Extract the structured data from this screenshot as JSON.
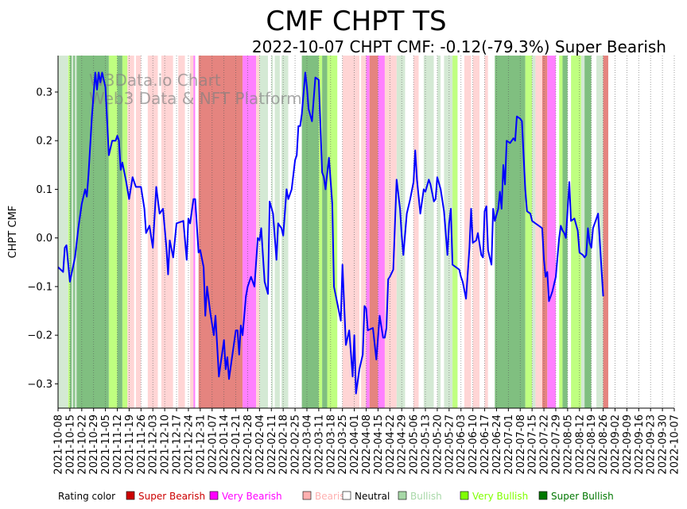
{
  "chart_data": {
    "type": "line",
    "title": "CMF CHPT TS",
    "subtitle": "2022-10-07 CHPT CMF: -0.12(-79.3%) Super Bearish",
    "ylabel": "CHPT CMF",
    "xlabel": "",
    "ylim": [
      -0.35,
      0.375
    ],
    "yticks": [
      -0.3,
      -0.2,
      -0.1,
      0.0,
      0.1,
      0.2,
      0.3
    ],
    "ytick_labels": [
      "−0.3",
      "−0.2",
      "−0.1",
      "0.0",
      "0.1",
      "0.2",
      "0.3"
    ],
    "xtick_labels": [
      "2021-10-08",
      "2021-10-15",
      "2021-10-22",
      "2021-10-29",
      "2021-11-05",
      "2021-11-12",
      "2021-11-19",
      "2021-11-26",
      "2021-12-03",
      "2021-12-10",
      "2021-12-17",
      "2021-12-24",
      "2021-12-31",
      "2022-01-07",
      "2022-01-14",
      "2022-01-21",
      "2022-01-28",
      "2022-02-04",
      "2022-02-11",
      "2022-02-18",
      "2022-02-25",
      "2022-03-04",
      "2022-03-11",
      "2022-03-18",
      "2022-03-25",
      "2022-04-01",
      "2022-04-08",
      "2022-04-15",
      "2022-04-22",
      "2022-04-29",
      "2022-05-06",
      "2022-05-13",
      "2022-05-20",
      "2022-05-27",
      "2022-06-03",
      "2022-06-10",
      "2022-06-17",
      "2022-06-24",
      "2022-07-01",
      "2022-07-08",
      "2022-07-15",
      "2022-07-22",
      "2022-07-29",
      "2022-08-05",
      "2022-08-12",
      "2022-08-19",
      "2022-08-26",
      "2022-09-02",
      "2022-09-09",
      "2022-09-16",
      "2022-09-23",
      "2022-09-30",
      "2022-10-07"
    ],
    "x_range_days": [
      0,
      364
    ],
    "series": [
      {
        "name": "CHPT CMF",
        "color": "#0000ff",
        "points": [
          [
            0,
            -0.06
          ],
          [
            3,
            -0.07
          ],
          [
            4,
            -0.02
          ],
          [
            5,
            -0.015
          ],
          [
            7,
            -0.09
          ],
          [
            10,
            -0.04
          ],
          [
            12,
            0.02
          ],
          [
            14,
            0.07
          ],
          [
            16,
            0.1
          ],
          [
            17,
            0.085
          ],
          [
            18,
            0.13
          ],
          [
            20,
            0.25
          ],
          [
            22,
            0.34
          ],
          [
            23,
            0.305
          ],
          [
            24,
            0.34
          ],
          [
            25,
            0.32
          ],
          [
            26,
            0.34
          ],
          [
            28,
            0.31
          ],
          [
            30,
            0.17
          ],
          [
            32,
            0.2
          ],
          [
            34,
            0.2
          ],
          [
            35,
            0.21
          ],
          [
            36,
            0.2
          ],
          [
            37,
            0.14
          ],
          [
            38,
            0.155
          ],
          [
            40,
            0.12
          ],
          [
            42,
            0.08
          ],
          [
            44,
            0.125
          ],
          [
            46,
            0.105
          ],
          [
            49,
            0.105
          ],
          [
            51,
            0.06
          ],
          [
            52,
            0.01
          ],
          [
            54,
            0.025
          ],
          [
            56,
            -0.02
          ],
          [
            58,
            0.105
          ],
          [
            60,
            0.05
          ],
          [
            62,
            0.06
          ],
          [
            64,
            -0.02
          ],
          [
            65,
            -0.075
          ],
          [
            66,
            -0.005
          ],
          [
            68,
            -0.04
          ],
          [
            70,
            0.03
          ],
          [
            74,
            0.035
          ],
          [
            75,
            -0.005
          ],
          [
            76,
            -0.045
          ],
          [
            77,
            0.04
          ],
          [
            78,
            0.03
          ],
          [
            80,
            0.08
          ],
          [
            81,
            0.08
          ],
          [
            83,
            -0.03
          ],
          [
            84,
            -0.025
          ],
          [
            86,
            -0.06
          ],
          [
            87,
            -0.16
          ],
          [
            88,
            -0.1
          ],
          [
            90,
            -0.155
          ],
          [
            92,
            -0.2
          ],
          [
            93,
            -0.16
          ],
          [
            95,
            -0.285
          ],
          [
            96,
            -0.26
          ],
          [
            98,
            -0.21
          ],
          [
            99,
            -0.27
          ],
          [
            100,
            -0.245
          ],
          [
            101,
            -0.29
          ],
          [
            103,
            -0.24
          ],
          [
            105,
            -0.19
          ],
          [
            106,
            -0.19
          ],
          [
            107,
            -0.24
          ],
          [
            108,
            -0.18
          ],
          [
            109,
            -0.2
          ],
          [
            111,
            -0.12
          ],
          [
            112,
            -0.1
          ],
          [
            114,
            -0.08
          ],
          [
            116,
            -0.1
          ],
          [
            118,
            0.0
          ],
          [
            119,
            -0.005
          ],
          [
            120,
            0.02
          ],
          [
            122,
            -0.09
          ],
          [
            124,
            -0.115
          ],
          [
            125,
            0.075
          ],
          [
            127,
            0.05
          ],
          [
            129,
            -0.045
          ],
          [
            130,
            0.03
          ],
          [
            132,
            0.02
          ],
          [
            133,
            0.005
          ],
          [
            135,
            0.1
          ],
          [
            136,
            0.08
          ],
          [
            138,
            0.1
          ],
          [
            140,
            0.16
          ],
          [
            141,
            0.17
          ],
          [
            142,
            0.23
          ],
          [
            143,
            0.23
          ],
          [
            144,
            0.255
          ],
          [
            146,
            0.34
          ],
          [
            147,
            0.31
          ],
          [
            148,
            0.265
          ],
          [
            150,
            0.24
          ],
          [
            152,
            0.33
          ],
          [
            154,
            0.325
          ],
          [
            156,
            0.135
          ],
          [
            157,
            0.125
          ],
          [
            158,
            0.1
          ],
          [
            160,
            0.165
          ],
          [
            162,
            0.07
          ],
          [
            163,
            -0.1
          ],
          [
            167,
            -0.17
          ],
          [
            168,
            -0.055
          ],
          [
            170,
            -0.22
          ],
          [
            172,
            -0.19
          ],
          [
            174,
            -0.285
          ],
          [
            175,
            -0.2
          ],
          [
            176,
            -0.32
          ],
          [
            178,
            -0.27
          ],
          [
            180,
            -0.24
          ],
          [
            181,
            -0.14
          ],
          [
            182,
            -0.145
          ],
          [
            183,
            -0.19
          ],
          [
            186,
            -0.185
          ],
          [
            188,
            -0.25
          ],
          [
            190,
            -0.16
          ],
          [
            192,
            -0.205
          ],
          [
            193,
            -0.205
          ],
          [
            194,
            -0.185
          ],
          [
            195,
            -0.085
          ],
          [
            196,
            -0.08
          ],
          [
            198,
            -0.065
          ],
          [
            200,
            0.12
          ],
          [
            202,
            0.06
          ],
          [
            203,
            0.005
          ],
          [
            204,
            -0.035
          ],
          [
            206,
            0.05
          ],
          [
            208,
            0.08
          ],
          [
            210,
            0.115
          ],
          [
            211,
            0.18
          ],
          [
            212,
            0.12
          ],
          [
            214,
            0.05
          ],
          [
            216,
            0.1
          ],
          [
            217,
            0.095
          ],
          [
            219,
            0.12
          ],
          [
            220,
            0.11
          ],
          [
            222,
            0.075
          ],
          [
            223,
            0.08
          ],
          [
            224,
            0.125
          ],
          [
            226,
            0.1
          ],
          [
            228,
            0.055
          ],
          [
            229,
            0.01
          ],
          [
            230,
            -0.035
          ],
          [
            231,
            0.03
          ],
          [
            232,
            0.06
          ],
          [
            233,
            -0.055
          ],
          [
            237,
            -0.065
          ],
          [
            238,
            -0.08
          ],
          [
            239,
            -0.09
          ],
          [
            241,
            -0.125
          ],
          [
            243,
            -0.02
          ],
          [
            244,
            0.06
          ],
          [
            245,
            -0.01
          ],
          [
            247,
            -0.005
          ],
          [
            248,
            0.01
          ],
          [
            250,
            -0.035
          ],
          [
            251,
            -0.04
          ],
          [
            252,
            0.055
          ],
          [
            253,
            0.065
          ],
          [
            254,
            -0.025
          ],
          [
            255,
            -0.04
          ],
          [
            256,
            -0.055
          ],
          [
            257,
            0.06
          ],
          [
            258,
            0.035
          ],
          [
            260,
            0.06
          ],
          [
            261,
            0.095
          ],
          [
            262,
            0.06
          ],
          [
            263,
            0.15
          ],
          [
            264,
            0.11
          ],
          [
            265,
            0.2
          ],
          [
            267,
            0.195
          ],
          [
            269,
            0.205
          ],
          [
            270,
            0.2
          ],
          [
            271,
            0.25
          ],
          [
            273,
            0.245
          ],
          [
            274,
            0.24
          ],
          [
            276,
            0.1
          ],
          [
            277,
            0.055
          ],
          [
            279,
            0.05
          ],
          [
            280,
            0.035
          ],
          [
            282,
            0.03
          ],
          [
            284,
            0.025
          ],
          [
            286,
            0.02
          ],
          [
            287,
            -0.045
          ],
          [
            288,
            -0.08
          ],
          [
            289,
            -0.07
          ],
          [
            290,
            -0.13
          ],
          [
            292,
            -0.11
          ],
          [
            294,
            -0.08
          ],
          [
            296,
            0.0
          ],
          [
            297,
            0.025
          ],
          [
            298,
            0.015
          ],
          [
            299,
            0.01
          ],
          [
            300,
            0.0
          ],
          [
            302,
            0.115
          ],
          [
            303,
            0.035
          ],
          [
            305,
            0.04
          ],
          [
            307,
            0.015
          ],
          [
            308,
            -0.03
          ],
          [
            310,
            -0.035
          ],
          [
            311,
            -0.04
          ],
          [
            312,
            -0.035
          ],
          [
            313,
            0.02
          ],
          [
            314,
            -0.01
          ],
          [
            315,
            -0.02
          ],
          [
            316,
            0.02
          ],
          [
            318,
            0.04
          ],
          [
            319,
            0.05
          ],
          [
            322,
            -0.12
          ]
        ]
      }
    ],
    "bands_legend": {
      "title": "Rating color",
      "items": [
        {
          "label": "Super Bearish",
          "color": "#cc0000",
          "band": "#e5847f"
        },
        {
          "label": "Very Bearish",
          "color": "#ff00ff",
          "band": "#ff80ff"
        },
        {
          "label": "Bearish",
          "color": "#ffb0b0",
          "band": "#ffd5d5"
        },
        {
          "label": "Neutral",
          "color": "#ffffff",
          "band": "#ffffff"
        },
        {
          "label": "Bullish",
          "color": "#a8d8a8",
          "band": "#d4e9d4"
        },
        {
          "label": "Very Bullish",
          "color": "#80ff00",
          "band": "#bfff80"
        },
        {
          "label": "Super Bullish",
          "color": "#007700",
          "band": "#80bf80"
        }
      ]
    },
    "bands": [
      [
        0,
        6,
        "bull"
      ],
      [
        6,
        7,
        "vbull"
      ],
      [
        7,
        8,
        "sbull"
      ],
      [
        8,
        9,
        "bull"
      ],
      [
        9,
        10,
        "sbull"
      ],
      [
        10,
        11,
        "bull"
      ],
      [
        11,
        30,
        "sbull"
      ],
      [
        30,
        35,
        "vbull"
      ],
      [
        35,
        38,
        "sbull"
      ],
      [
        38,
        41,
        "vbull"
      ],
      [
        41,
        45,
        "bear"
      ],
      [
        45,
        46,
        "neutral"
      ],
      [
        46,
        49,
        "bear"
      ],
      [
        49,
        53,
        "neutral"
      ],
      [
        53,
        59,
        "bear"
      ],
      [
        59,
        61,
        "neutral"
      ],
      [
        61,
        68,
        "bear"
      ],
      [
        68,
        71,
        "neutral"
      ],
      [
        71,
        75,
        "bear"
      ],
      [
        75,
        78,
        "neutral"
      ],
      [
        78,
        80,
        "bear"
      ],
      [
        80,
        81,
        "vbear"
      ],
      [
        81,
        83,
        "neutral"
      ],
      [
        83,
        109,
        "sbear"
      ],
      [
        109,
        117,
        "vbear"
      ],
      [
        117,
        119,
        "bear"
      ],
      [
        119,
        124,
        "bull"
      ],
      [
        124,
        126,
        "neutral"
      ],
      [
        126,
        127,
        "bull"
      ],
      [
        127,
        128,
        "neutral"
      ],
      [
        128,
        131,
        "bull"
      ],
      [
        131,
        132,
        "neutral"
      ],
      [
        132,
        136,
        "bull"
      ],
      [
        136,
        144,
        "neutral"
      ],
      [
        144,
        154,
        "sbull"
      ],
      [
        154,
        156,
        "vbull"
      ],
      [
        156,
        159,
        "sbull"
      ],
      [
        159,
        165,
        "vbull"
      ],
      [
        165,
        168,
        "neutral"
      ],
      [
        168,
        178,
        "bear"
      ],
      [
        178,
        179,
        "neutral"
      ],
      [
        179,
        182,
        "bear"
      ],
      [
        182,
        184,
        "vbear"
      ],
      [
        184,
        189,
        "sbear"
      ],
      [
        189,
        193,
        "vbear"
      ],
      [
        193,
        200,
        "bear"
      ],
      [
        200,
        205,
        "bull"
      ],
      [
        205,
        210,
        "neutral"
      ],
      [
        210,
        213,
        "bear"
      ],
      [
        213,
        216,
        "neutral"
      ],
      [
        216,
        222,
        "bull"
      ],
      [
        222,
        224,
        "neutral"
      ],
      [
        224,
        226,
        "bull"
      ],
      [
        226,
        228,
        "neutral"
      ],
      [
        228,
        233,
        "bull"
      ],
      [
        233,
        236,
        "vbull"
      ],
      [
        236,
        240,
        "neutral"
      ],
      [
        240,
        244,
        "bear"
      ],
      [
        244,
        245,
        "neutral"
      ],
      [
        245,
        249,
        "bear"
      ],
      [
        249,
        252,
        "neutral"
      ],
      [
        252,
        254,
        "bear"
      ],
      [
        254,
        258,
        "neutral"
      ],
      [
        258,
        276,
        "sbull"
      ],
      [
        276,
        280,
        "vbull"
      ],
      [
        280,
        282,
        "bull"
      ],
      [
        282,
        286,
        "bear"
      ],
      [
        286,
        289,
        "sbear"
      ],
      [
        289,
        294,
        "vbear"
      ],
      [
        294,
        296,
        "neutral"
      ],
      [
        296,
        298,
        "vbull"
      ],
      [
        298,
        301,
        "sbull"
      ],
      [
        301,
        303,
        "neutral"
      ],
      [
        303,
        309,
        "vbull"
      ],
      [
        309,
        311,
        "bull"
      ],
      [
        311,
        315,
        "sbull"
      ],
      [
        315,
        318,
        "neutral"
      ],
      [
        318,
        322,
        "bull"
      ],
      [
        322,
        325,
        "sbear"
      ]
    ],
    "watermark": [
      "W3Data.io Chart",
      "Web3 Data & NFT Platform"
    ]
  }
}
